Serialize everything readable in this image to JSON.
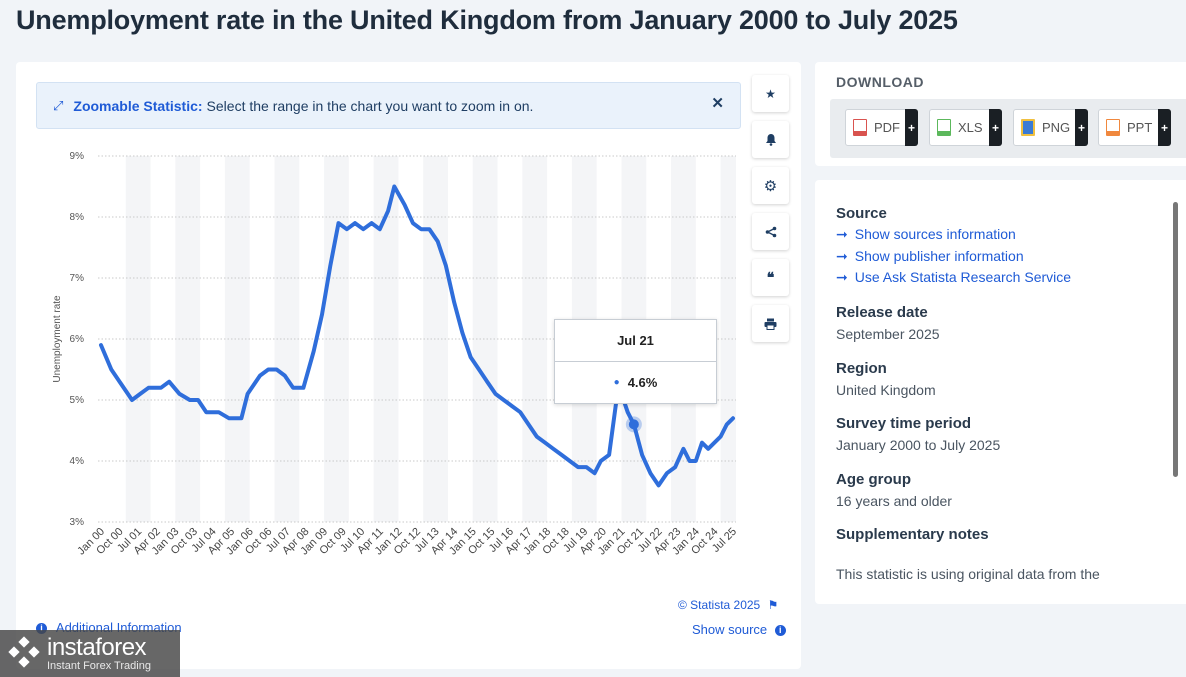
{
  "page": {
    "title": "Unemployment rate in the United Kingdom from January 2000 to July 2025"
  },
  "zoom_banner": {
    "label": "Zoomable Statistic:",
    "text": "Select the range in the chart you want to zoom in on."
  },
  "tools": [
    {
      "name": "star-icon",
      "glyph": "★"
    },
    {
      "name": "bell-icon",
      "glyph": "🔔"
    },
    {
      "name": "gear-icon",
      "glyph": "⚙"
    },
    {
      "name": "share-icon",
      "glyph": "<"
    },
    {
      "name": "quote-icon",
      "glyph": "❝"
    },
    {
      "name": "print-icon",
      "glyph": "⎙"
    }
  ],
  "tooltip": {
    "date": "Jul 21",
    "value": "4.6%"
  },
  "footer": {
    "credit": "© Statista 2025",
    "show_source": "Show source",
    "additional_info": "Additional Information"
  },
  "download": {
    "title": "DOWNLOAD",
    "buttons": [
      {
        "label": "PDF",
        "color": "#d9534f"
      },
      {
        "label": "XLS",
        "color": "#5cb85c"
      },
      {
        "label": "PNG",
        "color": "#3a7bd5"
      },
      {
        "label": "PPT",
        "color": "#f0883e"
      }
    ]
  },
  "info": {
    "source_heading": "Source",
    "links": [
      "Show sources information",
      "Show publisher information",
      "Use Ask Statista Research Service"
    ],
    "release_heading": "Release date",
    "release_value": "September 2025",
    "region_heading": "Region",
    "region_value": "United Kingdom",
    "survey_heading": "Survey time period",
    "survey_value": "January 2000 to July 2025",
    "age_heading": "Age group",
    "age_value": "16 years and older",
    "notes_heading": "Supplementary notes",
    "notes_value": "This statistic is using original data from the"
  },
  "watermark": {
    "name": "instaforex",
    "tagline": "Instant Forex Trading"
  },
  "chart_data": {
    "type": "line",
    "ylabel": "Unemployment rate",
    "ylim": [
      3,
      9
    ],
    "y_ticks": [
      "3%",
      "4%",
      "5%",
      "6%",
      "7%",
      "8%",
      "9%"
    ],
    "x_tick_labels": [
      "Jan 00",
      "Oct 00",
      "Jul 01",
      "Apr 02",
      "Jan 03",
      "Oct 03",
      "Jul 04",
      "Apr 05",
      "Jan 06",
      "Oct 06",
      "Jul 07",
      "Apr 08",
      "Jan 09",
      "Oct 09",
      "Jul 10",
      "Apr 11",
      "Jan 12",
      "Oct 12",
      "Jul 13",
      "Apr 14",
      "Jan 15",
      "Oct 15",
      "Jul 16",
      "Apr 17",
      "Jan 18",
      "Oct 18",
      "Jul 19",
      "Apr 20",
      "Jan 21",
      "Oct 21",
      "Jul 22",
      "Apr 23",
      "Jan 24",
      "Oct 24",
      "Jul 25"
    ],
    "grid": true,
    "series": [
      {
        "color": "#2f6edb",
        "points": [
          [
            "2000-01",
            5.9
          ],
          [
            "2000-06",
            5.5
          ],
          [
            "2000-10",
            5.3
          ],
          [
            "2001-04",
            5.0
          ],
          [
            "2001-08",
            5.1
          ],
          [
            "2001-12",
            5.2
          ],
          [
            "2002-06",
            5.2
          ],
          [
            "2002-10",
            5.3
          ],
          [
            "2003-03",
            5.1
          ],
          [
            "2003-08",
            5.0
          ],
          [
            "2003-12",
            5.0
          ],
          [
            "2004-04",
            4.8
          ],
          [
            "2004-10",
            4.8
          ],
          [
            "2005-03",
            4.7
          ],
          [
            "2005-09",
            4.7
          ],
          [
            "2005-12",
            5.1
          ],
          [
            "2006-06",
            5.4
          ],
          [
            "2006-10",
            5.5
          ],
          [
            "2007-02",
            5.5
          ],
          [
            "2007-06",
            5.4
          ],
          [
            "2007-10",
            5.2
          ],
          [
            "2008-03",
            5.2
          ],
          [
            "2008-08",
            5.8
          ],
          [
            "2008-12",
            6.4
          ],
          [
            "2009-04",
            7.2
          ],
          [
            "2009-08",
            7.9
          ],
          [
            "2009-12",
            7.8
          ],
          [
            "2010-04",
            7.9
          ],
          [
            "2010-08",
            7.8
          ],
          [
            "2010-12",
            7.9
          ],
          [
            "2011-04",
            7.8
          ],
          [
            "2011-08",
            8.1
          ],
          [
            "2011-11",
            8.5
          ],
          [
            "2012-04",
            8.2
          ],
          [
            "2012-08",
            7.9
          ],
          [
            "2012-12",
            7.8
          ],
          [
            "2013-04",
            7.8
          ],
          [
            "2013-08",
            7.6
          ],
          [
            "2013-12",
            7.2
          ],
          [
            "2014-04",
            6.6
          ],
          [
            "2014-08",
            6.1
          ],
          [
            "2014-12",
            5.7
          ],
          [
            "2015-04",
            5.5
          ],
          [
            "2015-08",
            5.3
          ],
          [
            "2015-12",
            5.1
          ],
          [
            "2016-04",
            5.0
          ],
          [
            "2016-08",
            4.9
          ],
          [
            "2016-12",
            4.8
          ],
          [
            "2017-04",
            4.6
          ],
          [
            "2017-08",
            4.4
          ],
          [
            "2017-12",
            4.3
          ],
          [
            "2018-04",
            4.2
          ],
          [
            "2018-08",
            4.1
          ],
          [
            "2018-12",
            4.0
          ],
          [
            "2019-04",
            3.9
          ],
          [
            "2019-08",
            3.9
          ],
          [
            "2019-12",
            3.8
          ],
          [
            "2020-03",
            4.0
          ],
          [
            "2020-07",
            4.1
          ],
          [
            "2020-11",
            5.1
          ],
          [
            "2021-01",
            5.1
          ],
          [
            "2021-04",
            4.8
          ],
          [
            "2021-07",
            4.6
          ],
          [
            "2021-11",
            4.1
          ],
          [
            "2022-03",
            3.8
          ],
          [
            "2022-07",
            3.6
          ],
          [
            "2022-11",
            3.8
          ],
          [
            "2023-03",
            3.9
          ],
          [
            "2023-07",
            4.2
          ],
          [
            "2023-10",
            4.0
          ],
          [
            "2024-01",
            4.0
          ],
          [
            "2024-04",
            4.3
          ],
          [
            "2024-07",
            4.2
          ],
          [
            "2024-10",
            4.3
          ],
          [
            "2025-01",
            4.4
          ],
          [
            "2025-04",
            4.6
          ],
          [
            "2025-07",
            4.7
          ]
        ]
      }
    ],
    "highlight": {
      "x": "2021-07",
      "y": 4.6
    }
  }
}
